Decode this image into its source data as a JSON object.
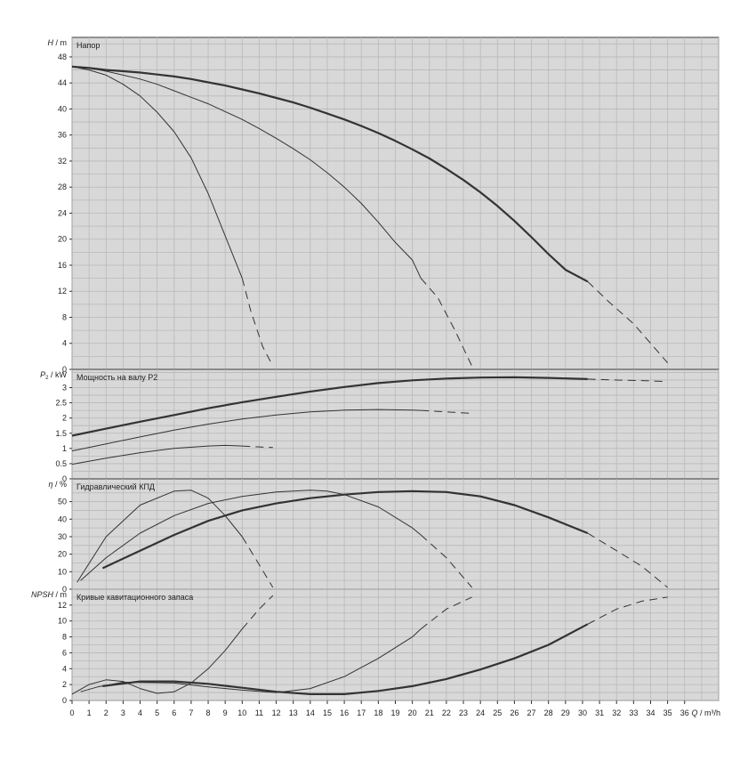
{
  "chart_data": {
    "type": "line",
    "x_axis": {
      "label_var": "Q",
      "label_unit": "m³/h",
      "min": 0,
      "max": 38,
      "ticks": [
        0,
        1,
        2,
        3,
        4,
        5,
        6,
        7,
        8,
        9,
        10,
        11,
        12,
        13,
        14,
        15,
        16,
        17,
        18,
        19,
        20,
        21,
        22,
        23,
        24,
        25,
        26,
        27,
        28,
        29,
        30,
        31,
        32,
        33,
        34,
        35,
        36
      ]
    },
    "panels": [
      {
        "id": "head",
        "title": "Напор",
        "ylabel_var": "H",
        "ylabel_unit": "m",
        "ylim": [
          0,
          51
        ],
        "yticks": [
          0,
          4,
          8,
          12,
          16,
          20,
          24,
          28,
          32,
          36,
          40,
          44,
          48
        ],
        "series": [
          {
            "width": 2.2,
            "solid": [
              [
                0,
                46.5
              ],
              [
                1,
                46.3
              ],
              [
                2,
                46.0
              ],
              [
                3,
                45.8
              ],
              [
                4,
                45.6
              ],
              [
                5,
                45.3
              ],
              [
                6,
                45.0
              ],
              [
                7,
                44.6
              ],
              [
                8,
                44.1
              ],
              [
                9,
                43.6
              ],
              [
                10,
                43.0
              ],
              [
                11,
                42.4
              ],
              [
                12,
                41.7
              ],
              [
                13,
                41.0
              ],
              [
                14,
                40.2
              ],
              [
                15,
                39.3
              ],
              [
                16,
                38.4
              ],
              [
                17,
                37.4
              ],
              [
                18,
                36.3
              ],
              [
                19,
                35.1
              ],
              [
                20,
                33.8
              ],
              [
                21,
                32.4
              ],
              [
                22,
                30.8
              ],
              [
                23,
                29.1
              ],
              [
                24,
                27.2
              ],
              [
                25,
                25.1
              ],
              [
                26,
                22.8
              ],
              [
                27,
                20.3
              ],
              [
                28,
                17.7
              ],
              [
                29,
                15.3
              ],
              [
                30.3,
                13.5
              ]
            ],
            "dashed": [
              [
                30.3,
                13.5
              ],
              [
                31.5,
                10.5
              ],
              [
                33,
                7.0
              ],
              [
                34,
                4.0
              ],
              [
                35,
                1.0
              ]
            ]
          },
          {
            "width": 1.0,
            "solid": [
              [
                0,
                46.5
              ],
              [
                1,
                46.3
              ],
              [
                2,
                45.8
              ],
              [
                3,
                45.2
              ],
              [
                4,
                44.6
              ],
              [
                5,
                43.8
              ],
              [
                6,
                42.8
              ],
              [
                7,
                41.8
              ],
              [
                8,
                40.8
              ],
              [
                9,
                39.6
              ],
              [
                10,
                38.4
              ],
              [
                11,
                37.0
              ],
              [
                12,
                35.5
              ],
              [
                13,
                33.9
              ],
              [
                14,
                32.2
              ],
              [
                15,
                30.2
              ],
              [
                16,
                28.0
              ],
              [
                17,
                25.5
              ],
              [
                18,
                22.6
              ],
              [
                19,
                19.5
              ],
              [
                20,
                16.8
              ],
              [
                20.5,
                14.0
              ]
            ],
            "dashed": [
              [
                20.5,
                14.0
              ],
              [
                21.5,
                11.0
              ],
              [
                22.5,
                6.0
              ],
              [
                23.5,
                0.5
              ]
            ]
          },
          {
            "width": 1.0,
            "solid": [
              [
                0,
                46.5
              ],
              [
                1,
                46.0
              ],
              [
                2,
                45.2
              ],
              [
                3,
                43.8
              ],
              [
                4,
                42.0
              ],
              [
                5,
                39.5
              ],
              [
                6,
                36.5
              ],
              [
                7,
                32.5
              ],
              [
                8,
                27.0
              ],
              [
                9,
                20.5
              ],
              [
                10,
                14.0
              ]
            ],
            "dashed": [
              [
                10,
                14.0
              ],
              [
                10.5,
                9.0
              ],
              [
                11.2,
                3.5
              ],
              [
                11.8,
                0.5
              ]
            ]
          }
        ]
      },
      {
        "id": "power",
        "title": "Мощность на валу P2",
        "ylabel_var": "P",
        "ylabel_sub": "2",
        "ylabel_unit": "kW",
        "ylim": [
          0,
          3.6
        ],
        "yticks": [
          "0",
          "0.5",
          "1",
          "1.5",
          "2",
          "2.5",
          "3"
        ],
        "series": [
          {
            "width": 2.2,
            "solid": [
              [
                0,
                1.42
              ],
              [
                2,
                1.65
              ],
              [
                4,
                1.88
              ],
              [
                6,
                2.1
              ],
              [
                8,
                2.32
              ],
              [
                10,
                2.52
              ],
              [
                12,
                2.7
              ],
              [
                14,
                2.87
              ],
              [
                16,
                3.02
              ],
              [
                18,
                3.15
              ],
              [
                20,
                3.24
              ],
              [
                22,
                3.3
              ],
              [
                24,
                3.33
              ],
              [
                26,
                3.34
              ],
              [
                28,
                3.32
              ],
              [
                30.3,
                3.28
              ]
            ],
            "dashed": [
              [
                30.3,
                3.28
              ],
              [
                32,
                3.25
              ],
              [
                33.5,
                3.23
              ],
              [
                35,
                3.2
              ]
            ]
          },
          {
            "width": 1.0,
            "solid": [
              [
                0,
                0.92
              ],
              [
                2,
                1.15
              ],
              [
                4,
                1.38
              ],
              [
                6,
                1.6
              ],
              [
                8,
                1.8
              ],
              [
                10,
                1.97
              ],
              [
                12,
                2.1
              ],
              [
                14,
                2.2
              ],
              [
                16,
                2.26
              ],
              [
                18,
                2.28
              ],
              [
                20,
                2.26
              ],
              [
                20.5,
                2.25
              ]
            ],
            "dashed": [
              [
                20.5,
                2.25
              ],
              [
                22,
                2.2
              ],
              [
                23.5,
                2.15
              ]
            ]
          },
          {
            "width": 1.0,
            "solid": [
              [
                0,
                0.48
              ],
              [
                2,
                0.68
              ],
              [
                4,
                0.86
              ],
              [
                6,
                1.0
              ],
              [
                8,
                1.08
              ],
              [
                9,
                1.1
              ],
              [
                10,
                1.08
              ]
            ],
            "dashed": [
              [
                10,
                1.08
              ],
              [
                11,
                1.05
              ],
              [
                11.8,
                1.03
              ]
            ]
          }
        ]
      },
      {
        "id": "efficiency",
        "title": "Гидравлический КПД",
        "ylabel_var": "η",
        "ylabel_unit": "%",
        "ylim": [
          0,
          63
        ],
        "yticks": [
          0,
          10,
          20,
          30,
          40,
          50
        ],
        "series": [
          {
            "width": 2.2,
            "solid": [
              [
                1.8,
                12
              ],
              [
                4,
                22
              ],
              [
                6,
                31
              ],
              [
                8,
                39
              ],
              [
                10,
                45
              ],
              [
                12,
                49
              ],
              [
                14,
                52
              ],
              [
                16,
                54
              ],
              [
                18,
                55.5
              ],
              [
                20,
                56
              ],
              [
                22,
                55.5
              ],
              [
                24,
                53
              ],
              [
                26,
                48
              ],
              [
                28,
                41
              ],
              [
                30.3,
                32
              ]
            ],
            "dashed": [
              [
                30.3,
                32
              ],
              [
                32,
                22
              ],
              [
                33.5,
                13
              ],
              [
                35,
                1
              ]
            ]
          },
          {
            "width": 1.0,
            "solid": [
              [
                0.5,
                5
              ],
              [
                2,
                18
              ],
              [
                4,
                32
              ],
              [
                6,
                42
              ],
              [
                8,
                49
              ],
              [
                10,
                53
              ],
              [
                12,
                55.5
              ],
              [
                14,
                56.5
              ],
              [
                15,
                56
              ],
              [
                16,
                54
              ],
              [
                18,
                47
              ],
              [
                20,
                35
              ],
              [
                20.5,
                31
              ]
            ],
            "dashed": [
              [
                20.5,
                31
              ],
              [
                22,
                18
              ],
              [
                23.5,
                1
              ]
            ]
          },
          {
            "width": 1.0,
            "solid": [
              [
                0.3,
                4
              ],
              [
                2,
                30
              ],
              [
                4,
                48
              ],
              [
                6,
                56
              ],
              [
                7,
                56.5
              ],
              [
                8,
                52
              ],
              [
                9,
                42
              ],
              [
                10,
                30
              ]
            ],
            "dashed": [
              [
                10,
                30
              ],
              [
                11,
                14
              ],
              [
                11.8,
                1
              ]
            ]
          }
        ]
      },
      {
        "id": "npsh",
        "title": "Кривые кавитационного запаса",
        "ylabel_var": "NPSH",
        "ylabel_unit": "m",
        "ylim": [
          0,
          14
        ],
        "yticks": [
          0,
          2,
          4,
          6,
          8,
          10,
          12
        ],
        "series": [
          {
            "width": 2.2,
            "solid": [
              [
                1.8,
                1.8
              ],
              [
                4,
                2.4
              ],
              [
                6,
                2.4
              ],
              [
                8,
                2.1
              ],
              [
                10,
                1.6
              ],
              [
                12,
                1.1
              ],
              [
                14,
                0.8
              ],
              [
                16,
                0.8
              ],
              [
                18,
                1.2
              ],
              [
                20,
                1.8
              ],
              [
                22,
                2.7
              ],
              [
                24,
                3.9
              ],
              [
                26,
                5.3
              ],
              [
                28,
                7.0
              ],
              [
                30.3,
                9.6
              ]
            ],
            "dashed": [
              [
                30.3,
                9.6
              ],
              [
                32,
                11.5
              ],
              [
                33.5,
                12.5
              ],
              [
                35,
                13.0
              ]
            ]
          },
          {
            "width": 1.0,
            "solid": [
              [
                0.5,
                1.1
              ],
              [
                1.5,
                1.7
              ],
              [
                3,
                2.3
              ],
              [
                6,
                2.2
              ],
              [
                8,
                1.7
              ],
              [
                10,
                1.3
              ],
              [
                12,
                1.0
              ],
              [
                14,
                1.5
              ],
              [
                16,
                3.0
              ],
              [
                18,
                5.3
              ],
              [
                20,
                8.0
              ],
              [
                20.5,
                9.0
              ]
            ],
            "dashed": [
              [
                20.5,
                9.0
              ],
              [
                22,
                11.5
              ],
              [
                23.5,
                13.0
              ]
            ]
          },
          {
            "width": 1.0,
            "solid": [
              [
                0,
                0.8
              ],
              [
                1,
                2.0
              ],
              [
                2,
                2.6
              ],
              [
                3,
                2.4
              ],
              [
                4,
                1.5
              ],
              [
                5,
                0.9
              ],
              [
                6,
                1.1
              ],
              [
                7,
                2.2
              ],
              [
                8,
                4.0
              ],
              [
                9,
                6.3
              ],
              [
                10,
                9.0
              ]
            ],
            "dashed": [
              [
                10,
                9.0
              ],
              [
                11,
                11.5
              ],
              [
                11.8,
                13.2
              ]
            ]
          }
        ]
      }
    ]
  }
}
